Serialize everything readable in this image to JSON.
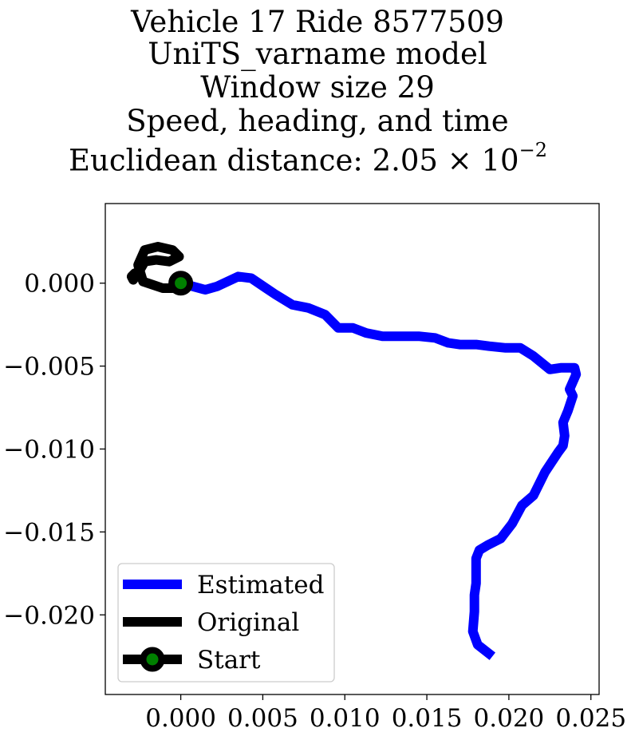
{
  "title_lines": [
    "Vehicle 17 Ride 8577509",
    "UniTS_varname model",
    "Window size 29",
    "Speed, heading, and time",
    "Euclidean distance: 2.05 × 10",
    "−2"
  ],
  "chart_data": {
    "type": "line",
    "title": "Vehicle 17 Ride 8577509 / UniTS_varname model / Window size 29 / Speed, heading, and time / Euclidean distance: 2.05 × 10^−2",
    "xlabel": "",
    "ylabel": "",
    "xlim": [
      -0.0046,
      0.0255
    ],
    "ylim": [
      -0.0248,
      0.0048
    ],
    "x_ticks": [
      0.0,
      0.005,
      0.01,
      0.015,
      0.02,
      0.025
    ],
    "x_tick_labels": [
      "0.000",
      "0.005",
      "0.010",
      "0.015",
      "0.020",
      "0.025"
    ],
    "y_ticks": [
      0.0,
      -0.005,
      -0.01,
      -0.015,
      -0.02
    ],
    "y_tick_labels": [
      "0.000",
      "−0.005",
      "−0.010",
      "−0.015",
      "−0.020"
    ],
    "grid": false,
    "legend_position": "lower-left",
    "series": [
      {
        "name": "Estimated",
        "color": "#0000ff",
        "x": [
          0.0,
          0.0015,
          0.0022,
          0.0035,
          0.0043,
          0.0052,
          0.0058,
          0.0068,
          0.0078,
          0.0088,
          0.0096,
          0.0105,
          0.0113,
          0.0123,
          0.0135,
          0.0145,
          0.0155,
          0.0163,
          0.017,
          0.018,
          0.0188,
          0.0198,
          0.0207,
          0.0215,
          0.0225,
          0.0232,
          0.024,
          0.0241,
          0.0237,
          0.0239,
          0.0236,
          0.0233,
          0.0234,
          0.0233,
          0.023,
          0.0222,
          0.0215,
          0.0208,
          0.0202,
          0.0195,
          0.0187,
          0.0182,
          0.018,
          0.018,
          0.018,
          0.0179,
          0.0179,
          0.0178,
          0.0181,
          0.019
        ],
        "y": [
          0.0,
          -0.0004,
          -0.0002,
          0.0004,
          0.0003,
          -0.0003,
          -0.0007,
          -0.0013,
          -0.0015,
          -0.0019,
          -0.0027,
          -0.0027,
          -0.003,
          -0.0032,
          -0.0032,
          -0.0032,
          -0.0033,
          -0.0036,
          -0.0037,
          -0.0037,
          -0.0038,
          -0.0039,
          -0.0039,
          -0.0044,
          -0.0052,
          -0.0051,
          -0.0051,
          -0.0055,
          -0.0064,
          -0.0068,
          -0.0077,
          -0.0084,
          -0.0092,
          -0.0098,
          -0.0102,
          -0.0114,
          -0.0128,
          -0.0134,
          -0.0145,
          -0.0154,
          -0.0158,
          -0.0161,
          -0.0166,
          -0.0173,
          -0.0181,
          -0.0188,
          -0.0198,
          -0.021,
          -0.0218,
          -0.0225
        ]
      },
      {
        "name": "Original",
        "color": "#000000",
        "x": [
          0.0,
          -0.0005,
          -0.0011,
          -0.0017,
          -0.0023,
          -0.0026,
          -0.0022,
          -0.0014,
          -0.0005,
          -0.0001,
          -0.0007,
          -0.0015,
          -0.0022,
          -0.0026,
          -0.0029,
          -0.003,
          -0.0028,
          -0.0026
        ],
        "y": [
          0.0,
          -0.0003,
          -0.0003,
          -0.0001,
          0.0001,
          0.0011,
          0.002,
          0.0022,
          0.002,
          0.0016,
          0.0013,
          0.0014,
          0.0013,
          0.0006,
          0.0002,
          0.0004,
          0.0006,
          0.0003
        ]
      }
    ],
    "start_point": {
      "label": "Start",
      "x": 0.0,
      "y": 0.0,
      "marker_color": "#000000",
      "marker_face": "#008000"
    }
  },
  "legend": {
    "items": [
      {
        "label": "Estimated",
        "color": "#0000ff",
        "style": "line"
      },
      {
        "label": "Original",
        "color": "#000000",
        "style": "line"
      },
      {
        "label": "Start",
        "color": "#000000",
        "style": "line-marker",
        "marker_face": "#008000"
      }
    ]
  }
}
